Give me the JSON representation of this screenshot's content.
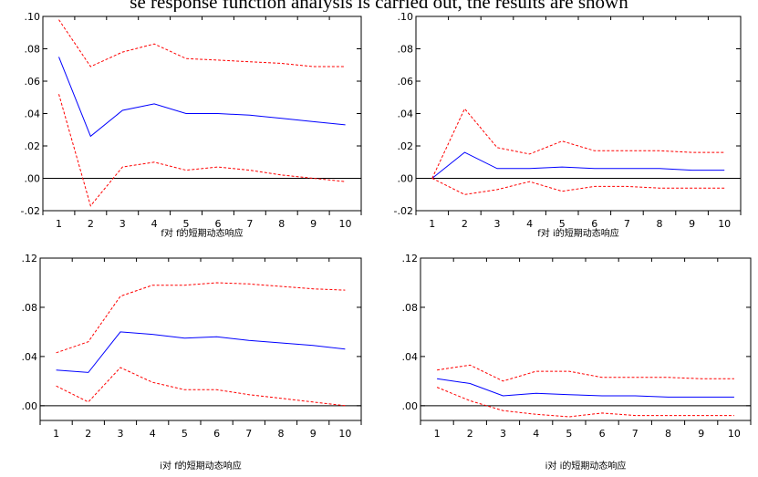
{
  "header_text": "se response function analysis is carried out, the results are shown",
  "colors": {
    "response": "#0000ff",
    "band": "#ff0000",
    "zero_line": "#000000",
    "frame": "#000000"
  },
  "chart_data": [
    {
      "type": "line",
      "xlabel": "f对 f的短期动态响应",
      "x": [
        1,
        2,
        3,
        4,
        5,
        6,
        7,
        8,
        9,
        10
      ],
      "ylim": [
        -0.02,
        0.1
      ],
      "yticks": [
        ".10",
        ".08",
        ".06",
        ".04",
        ".02",
        ".00",
        "-.02"
      ],
      "ytick_values": [
        0.1,
        0.08,
        0.06,
        0.04,
        0.02,
        0.0,
        -0.02
      ],
      "zero_line": true,
      "series": [
        {
          "role": "response",
          "style": "solid",
          "values": [
            0.075,
            0.026,
            0.042,
            0.046,
            0.04,
            0.04,
            0.039,
            0.037,
            0.035,
            0.033
          ]
        },
        {
          "role": "upper",
          "style": "dashed",
          "values": [
            0.098,
            0.069,
            0.078,
            0.083,
            0.074,
            0.073,
            0.072,
            0.071,
            0.069,
            0.069
          ]
        },
        {
          "role": "lower",
          "style": "dashed",
          "values": [
            0.052,
            -0.017,
            0.007,
            0.01,
            0.005,
            0.007,
            0.005,
            0.002,
            0.0,
            -0.002
          ]
        }
      ]
    },
    {
      "type": "line",
      "xlabel": "f对 i的短期动态响应",
      "x": [
        1,
        2,
        3,
        4,
        5,
        6,
        7,
        8,
        9,
        10
      ],
      "ylim": [
        -0.02,
        0.1
      ],
      "yticks": [
        ".10",
        ".08",
        ".06",
        ".04",
        ".02",
        ".00",
        "-.02"
      ],
      "ytick_values": [
        0.1,
        0.08,
        0.06,
        0.04,
        0.02,
        0.0,
        -0.02
      ],
      "zero_line": true,
      "series": [
        {
          "role": "response",
          "style": "solid",
          "values": [
            0.0,
            0.016,
            0.006,
            0.006,
            0.007,
            0.006,
            0.006,
            0.006,
            0.005,
            0.005
          ]
        },
        {
          "role": "upper",
          "style": "dashed",
          "values": [
            0.0,
            0.043,
            0.019,
            0.015,
            0.023,
            0.017,
            0.017,
            0.017,
            0.016,
            0.016
          ]
        },
        {
          "role": "lower",
          "style": "dashed",
          "values": [
            0.0,
            -0.01,
            -0.007,
            -0.002,
            -0.008,
            -0.005,
            -0.005,
            -0.006,
            -0.006,
            -0.006
          ]
        }
      ]
    },
    {
      "type": "line",
      "xlabel": "i对 f的短期动态响应",
      "x": [
        1,
        2,
        3,
        4,
        5,
        6,
        7,
        8,
        9,
        10
      ],
      "ylim": [
        -0.012,
        0.12
      ],
      "yticks": [
        ".12",
        ".08",
        ".04",
        ".00"
      ],
      "ytick_values": [
        0.12,
        0.08,
        0.04,
        0.0
      ],
      "zero_line": true,
      "series": [
        {
          "role": "response",
          "style": "solid",
          "values": [
            0.029,
            0.027,
            0.06,
            0.058,
            0.055,
            0.056,
            0.053,
            0.051,
            0.049,
            0.046
          ]
        },
        {
          "role": "upper",
          "style": "dashed",
          "values": [
            0.043,
            0.052,
            0.089,
            0.098,
            0.098,
            0.1,
            0.099,
            0.097,
            0.095,
            0.094
          ]
        },
        {
          "role": "lower",
          "style": "dashed",
          "values": [
            0.016,
            0.003,
            0.031,
            0.019,
            0.013,
            0.013,
            0.009,
            0.006,
            0.003,
            0.0
          ]
        }
      ]
    },
    {
      "type": "line",
      "xlabel": "i对 i的短期动态响应",
      "x": [
        1,
        2,
        3,
        4,
        5,
        6,
        7,
        8,
        9,
        10
      ],
      "ylim": [
        -0.012,
        0.12
      ],
      "yticks": [
        ".12",
        ".08",
        ".04",
        ".00"
      ],
      "ytick_values": [
        0.12,
        0.08,
        0.04,
        0.0
      ],
      "zero_line": true,
      "series": [
        {
          "role": "response",
          "style": "solid",
          "values": [
            0.022,
            0.018,
            0.008,
            0.01,
            0.009,
            0.008,
            0.008,
            0.007,
            0.007,
            0.007
          ]
        },
        {
          "role": "upper",
          "style": "dashed",
          "values": [
            0.029,
            0.033,
            0.02,
            0.028,
            0.028,
            0.023,
            0.023,
            0.023,
            0.022,
            0.022
          ]
        },
        {
          "role": "lower",
          "style": "dashed",
          "values": [
            0.015,
            0.004,
            -0.004,
            -0.007,
            -0.009,
            -0.006,
            -0.008,
            -0.008,
            -0.008,
            -0.008
          ]
        }
      ]
    }
  ]
}
